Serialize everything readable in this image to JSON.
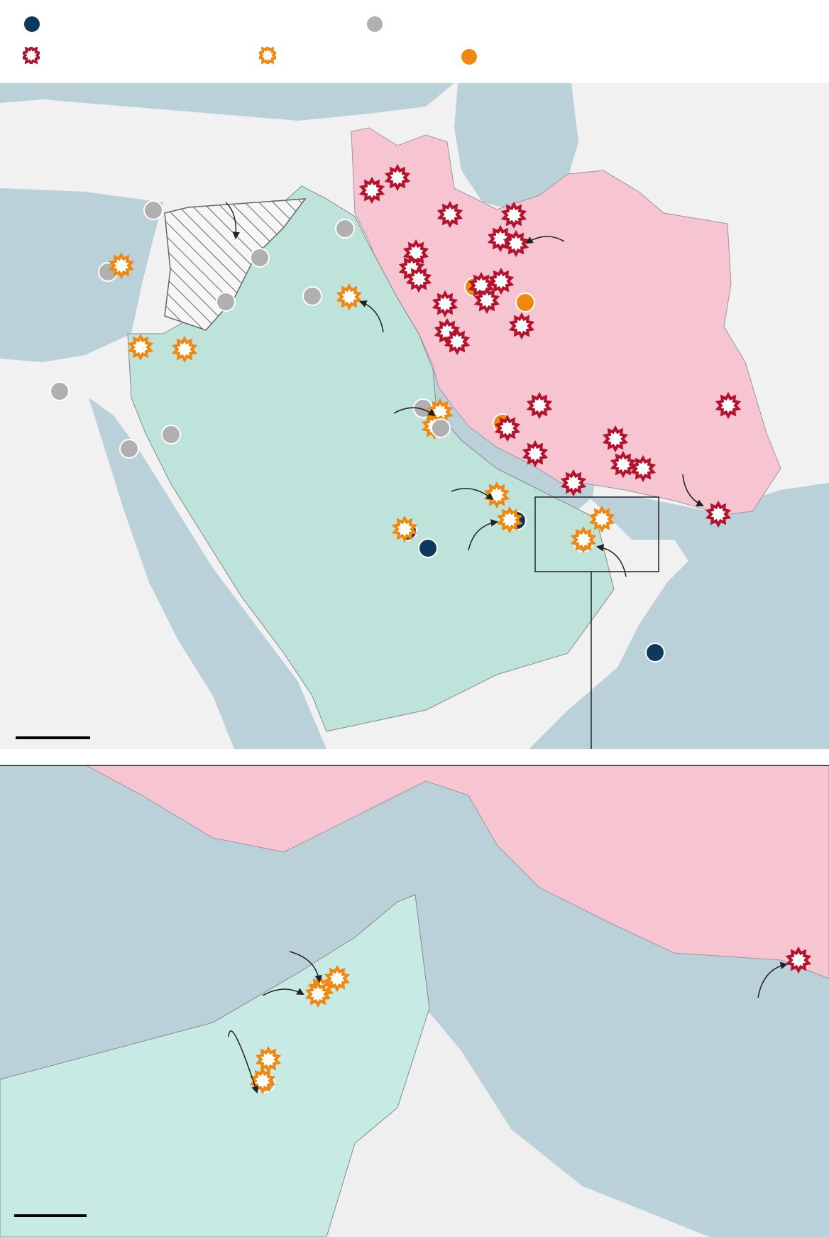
{
  "legend": {
    "items": [
      {
        "icon": "navy-dot-icon",
        "color": "#0d3a5c"
      },
      {
        "icon": "gray-dot-icon",
        "color": "#b0b0b0"
      },
      {
        "icon": "red-burst-icon",
        "color": "#b5122e"
      },
      {
        "icon": "orange-burst-icon",
        "color": "#f0880f"
      },
      {
        "icon": "orange-dot-icon",
        "color": "#f0880f"
      }
    ]
  },
  "colors": {
    "sea": "#bad1da",
    "land": "#f1f1f1",
    "iran": "#f6c5d1",
    "gulf_states": "#bee3da",
    "inset_gulf_states": "#c7ebe4",
    "border": "#888888"
  }
}
